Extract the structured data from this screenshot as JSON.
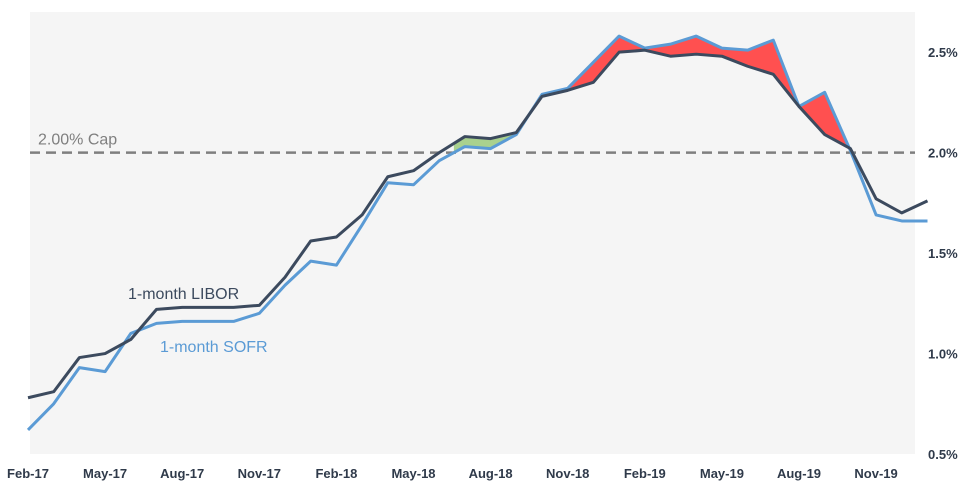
{
  "chart_data": {
    "type": "line",
    "title": "",
    "xlabel": "",
    "ylabel": "",
    "ylim": [
      0.5,
      2.7
    ],
    "yticks": [
      "0.5%",
      "1.0%",
      "1.5%",
      "2.0%",
      "2.5%"
    ],
    "yticks_values": [
      0.5,
      1.0,
      1.5,
      2.0,
      2.5
    ],
    "xtick_labels": [
      "Feb-17",
      "May-17",
      "Aug-17",
      "Nov-17",
      "Feb-18",
      "May-18",
      "Aug-18",
      "Nov-18",
      "Feb-19",
      "May-19",
      "Aug-19",
      "Nov-19"
    ],
    "x": [
      "Feb-17",
      "Mar-17",
      "Apr-17",
      "May-17",
      "Jun-17",
      "Jul-17",
      "Aug-17",
      "Sep-17",
      "Oct-17",
      "Nov-17",
      "Dec-17",
      "Jan-18",
      "Feb-18",
      "Mar-18",
      "Apr-18",
      "May-18",
      "Jun-18",
      "Jul-18",
      "Aug-18",
      "Sep-18",
      "Oct-18",
      "Nov-18",
      "Dec-18",
      "Jan-19",
      "Feb-19",
      "Mar-19",
      "Apr-19",
      "May-19",
      "Jun-19",
      "Jul-19",
      "Aug-19",
      "Sep-19",
      "Oct-19",
      "Nov-19",
      "Dec-19",
      "Jan-20"
    ],
    "series": [
      {
        "name": "1-month LIBOR",
        "color": "#3c4a5e",
        "values": [
          0.78,
          0.81,
          0.98,
          1.0,
          1.07,
          1.22,
          1.23,
          1.23,
          1.23,
          1.24,
          1.38,
          1.56,
          1.58,
          1.69,
          1.88,
          1.91,
          2.0,
          2.08,
          2.07,
          2.1,
          2.28,
          2.31,
          2.35,
          2.5,
          2.51,
          2.48,
          2.49,
          2.48,
          2.43,
          2.39,
          2.23,
          2.09,
          2.02,
          1.77,
          1.7,
          1.76
        ]
      },
      {
        "name": "1-month SOFR",
        "color": "#5b9bd5",
        "values": [
          0.62,
          0.75,
          0.93,
          0.91,
          1.1,
          1.15,
          1.16,
          1.16,
          1.16,
          1.2,
          1.34,
          1.46,
          1.44,
          1.64,
          1.85,
          1.84,
          1.96,
          2.03,
          2.02,
          2.09,
          2.29,
          2.32,
          2.45,
          2.58,
          2.52,
          2.54,
          2.58,
          2.52,
          2.51,
          2.56,
          2.23,
          2.3,
          2.01,
          1.69,
          1.66,
          1.66
        ]
      }
    ],
    "cap": {
      "value": 2.0,
      "label": "2.00% Cap"
    },
    "fill_colors": {
      "sofr_below": "#a9d18e",
      "sofr_above": "#ff5050"
    },
    "grid": false,
    "legend": "inline labels"
  },
  "colors": {
    "plot_bg": "#f5f5f5",
    "cap_line": "#7f7f7f",
    "tick_text": "#2f3a4a"
  }
}
